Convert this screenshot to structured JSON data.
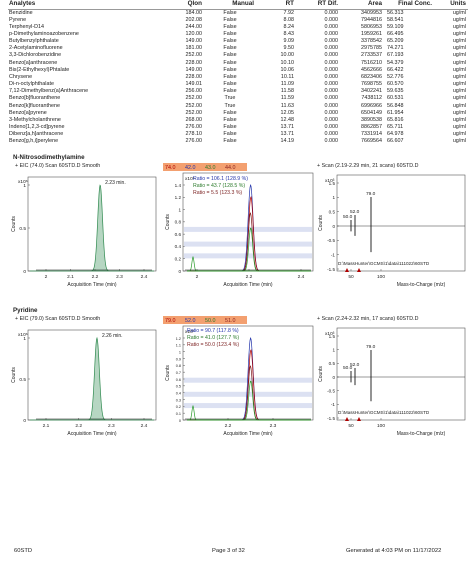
{
  "table": {
    "headers": [
      "Analytes",
      "QIon",
      "Manual",
      "RT",
      "RT Dif.",
      "Area",
      "Final Conc.",
      "Units"
    ],
    "rows": [
      [
        "Benzidine",
        "184.00",
        "False",
        "7.92",
        "0.000",
        "3409953",
        "56.313",
        "ug/ml"
      ],
      [
        "Pyrene",
        "202.08",
        "False",
        "8.08",
        "0.000",
        "7944816",
        "58.541",
        "ug/ml"
      ],
      [
        "Terphenyl-D14",
        "244.00",
        "False",
        "8.24",
        "0.000",
        "5806953",
        "59.109",
        "ug/ml"
      ],
      [
        "p-Dimethylaminoazobenzene",
        "120.00",
        "False",
        "8.43",
        "0.000",
        "1959261",
        "66.495",
        "ug/ml"
      ],
      [
        "Butylbenzylphthalate",
        "149.00",
        "False",
        "9.09",
        "0.000",
        "3378542",
        "65.209",
        "ug/ml"
      ],
      [
        "2-Acetylaminofluorene",
        "181.00",
        "False",
        "9.50",
        "0.000",
        "2975785",
        "74.271",
        "ug/ml"
      ],
      [
        "3,3-Dichlorobenzidine",
        "252.00",
        "False",
        "10.00",
        "0.000",
        "2733537",
        "67.193",
        "ug/ml"
      ],
      [
        "Benzo[a]anthracene",
        "228.00",
        "False",
        "10.10",
        "0.000",
        "7516210",
        "54.379",
        "ug/ml"
      ],
      [
        "Bis(2-Ethylhexyl)Phtalate",
        "149.00",
        "False",
        "10.06",
        "0.000",
        "4562666",
        "66.422",
        "ug/ml"
      ],
      [
        "Chrysene",
        "228.00",
        "False",
        "10.11",
        "0.000",
        "6823406",
        "52.776",
        "ug/ml"
      ],
      [
        "Di-n-octylphthalate",
        "149.01",
        "False",
        "11.09",
        "0.000",
        "7698755",
        "60.570",
        "ug/ml"
      ],
      [
        "7,12-Dimethylbenz(a)Anthracene",
        "256.00",
        "False",
        "11.58",
        "0.000",
        "3402241",
        "59.635",
        "ug/ml"
      ],
      [
        "Benzo[b]fluoranthene",
        "252.00",
        "True",
        "11.59",
        "0.000",
        "7438112",
        "60.531",
        "ug/ml"
      ],
      [
        "Benzo[k]fluoranthene",
        "252.00",
        "True",
        "11.63",
        "0.000",
        "6996966",
        "56.848",
        "ug/ml"
      ],
      [
        "Benzo[a]pyrene",
        "252.00",
        "False",
        "12.05",
        "0.000",
        "6504149",
        "61.954",
        "ug/ml"
      ],
      [
        "3-Methylcholanthrene",
        "268.00",
        "False",
        "12.48",
        "0.000",
        "3890538",
        "65.816",
        "ug/ml"
      ],
      [
        "Indeno[1,2,3-cd]pyrene",
        "276.00",
        "False",
        "13.71",
        "0.000",
        "8862857",
        "65.711",
        "ug/ml"
      ],
      [
        "Dibenz[a,h]anthracene",
        "278.10",
        "False",
        "13.71",
        "0.000",
        "7331914",
        "64.978",
        "ug/ml"
      ],
      [
        "Benzo[g,h,i]perylene",
        "276.00",
        "False",
        "14.19",
        "0.000",
        "7669564",
        "66.607",
        "ug/ml"
      ]
    ]
  },
  "sections": [
    {
      "title": "N-Nitrosodimethylamine",
      "eic": {
        "header": "+ EIC (74.0) Scan 60STD.D  Smooth",
        "ylabel": "Counts",
        "yexp": "x10⁶",
        "peak_label": "2.23 min.",
        "yticks": [
          "1",
          "0.5",
          "0"
        ],
        "xticks": [
          "2",
          "2.1",
          "2.2",
          "2.3",
          "2.4"
        ],
        "xlabel": "Acquisition Time (min)"
      },
      "ions": {
        "labels": [
          "74.0",
          "42.0",
          "43.0",
          "44.0"
        ],
        "label_colors": [
          "#b00000",
          "#2233aa",
          "#2a7a2a",
          "#8a1f1f"
        ],
        "ylabel": "Counts",
        "yexp": "x10⁶",
        "yticks": [
          "1.4",
          "1.2",
          "1",
          "0.8",
          "0.6",
          "0.4",
          "0.2",
          "0"
        ],
        "ratios": [
          "Ratio = 106.1 (128.9 %)",
          "Ratio = 43.7 (128.5 %)",
          "Ratio = 5.5 (123.3 %)"
        ],
        "xticks": [
          "2",
          "2.2",
          "2.4"
        ],
        "xlabel": "Acquisition Time (min)"
      },
      "ms": {
        "header": "+ Scan (2.19-2.29 min, 21 scans) 60STD.D",
        "ylabel": "Counts",
        "yexp": "x10³",
        "yticks": [
          "1.5",
          "1",
          "0.5",
          "0",
          "-0.5",
          "-1",
          "-1.5"
        ],
        "peaks": [
          "79.0",
          "52.0",
          "50.0"
        ],
        "path": "D:\\MassHunter\\GCMS\\1\\data\\111022\\60STD",
        "xticks": [
          "50",
          "100"
        ],
        "xlabel": "Mass-to-Charge (m/z)"
      }
    },
    {
      "title": "Pyridine",
      "eic": {
        "header": "+ EIC (79.0) Scan 60STD.D  Smooth",
        "ylabel": "Counts",
        "yexp": "x10⁶",
        "peak_label": "2.26 min.",
        "yticks": [
          "1",
          "0.5",
          "0"
        ],
        "xticks": [
          "2.1",
          "2.2",
          "2.3",
          "2.4"
        ],
        "xlabel": "Acquisition Time (min)"
      },
      "ions": {
        "labels": [
          "79.0",
          "52.0",
          "50.0",
          "51.0"
        ],
        "label_colors": [
          "#b00000",
          "#2233aa",
          "#2a7a2a",
          "#8a1f1f"
        ],
        "ylabel": "Counts",
        "yexp": "x10⁶",
        "yticks": [
          "1.2",
          "1.1",
          "1",
          "0.9",
          "0.8",
          "0.7",
          "0.6",
          "0.5",
          "0.4",
          "0.3",
          "0.2",
          "0.1",
          "0"
        ],
        "ratios": [
          "Ratio = 90.7 (117.8 %)",
          "Ratio = 41.0 (127.7 %)",
          "Ratio = 50.0 (123.4 %)"
        ],
        "xticks": [
          "2.2",
          "2.3"
        ],
        "xlabel": "Acquisition Time (min)"
      },
      "ms": {
        "header": "+ Scan (2.24-2.32 min, 17 scans) 60STD.D",
        "ylabel": "Counts",
        "yexp": "x10³",
        "yticks": [
          "1.5",
          "1",
          "0.5",
          "0",
          "-0.5",
          "-1",
          "-1.5"
        ],
        "peaks": [
          "79.0",
          "52.0",
          "50.0"
        ],
        "path": "D:\\MassHunter\\GCMS\\1\\data\\111022\\60STD",
        "xticks": [
          "50",
          "100"
        ],
        "xlabel": "Mass-to-Charge (m/z)"
      }
    }
  ],
  "footer": {
    "left": "60STD",
    "center": "Page 3 of 32",
    "right": "Generated at 4:03 PM on 11/17/2022"
  },
  "colors": {
    "peak_fill": "#2f8a4f",
    "trace_blue": "#2233aa",
    "trace_red": "#b00000",
    "trace_green": "#2a9a2a",
    "trace_brown": "#7a1f1f",
    "header_band": "#f3a070",
    "ratio_fill": "#bfc8e8"
  }
}
